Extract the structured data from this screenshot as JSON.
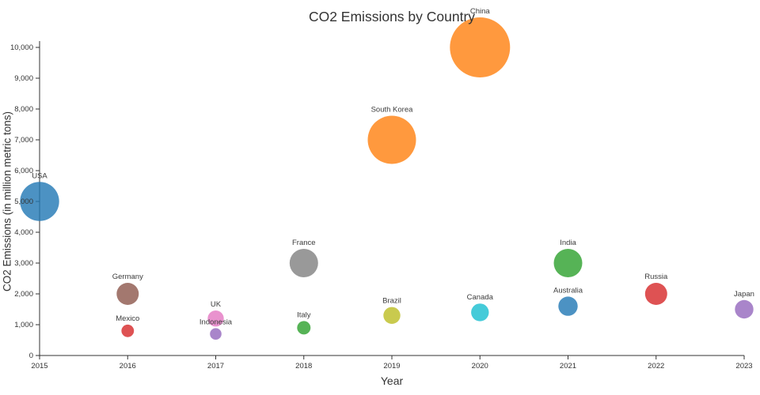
{
  "chart_data": {
    "type": "scatter",
    "title": "CO2 Emissions by Country",
    "xlabel": "Year",
    "ylabel": "CO2 Emissions (in million metric tons)",
    "xlim": [
      2015,
      2023
    ],
    "ylim": [
      0,
      10000
    ],
    "x_ticks": [
      2015,
      2016,
      2017,
      2018,
      2019,
      2020,
      2021,
      2022,
      2023
    ],
    "y_ticks": [
      0,
      1000,
      2000,
      3000,
      4000,
      5000,
      6000,
      7000,
      8000,
      9000,
      10000
    ],
    "grid": false,
    "legend": "none",
    "bubble_opacity": 0.8,
    "axis_color": "#333333",
    "label_color": "#3b3b3b",
    "points": [
      {
        "country": "USA",
        "year": 2015,
        "value": 5000,
        "color": "#1f77b4"
      },
      {
        "country": "Germany",
        "year": 2016,
        "value": 2000,
        "color": "#8c564b"
      },
      {
        "country": "Mexico",
        "year": 2016,
        "value": 800,
        "color": "#d62728"
      },
      {
        "country": "UK",
        "year": 2017,
        "value": 1200,
        "color": "#e377c2"
      },
      {
        "country": "Indonesia",
        "year": 2017,
        "value": 700,
        "color": "#9467bd"
      },
      {
        "country": "France",
        "year": 2018,
        "value": 3000,
        "color": "#7f7f7f"
      },
      {
        "country": "Italy",
        "year": 2018,
        "value": 900,
        "color": "#2ca02c"
      },
      {
        "country": "South Korea",
        "year": 2019,
        "value": 7000,
        "color": "#ff7f0e"
      },
      {
        "country": "Brazil",
        "year": 2019,
        "value": 1300,
        "color": "#bcbd22"
      },
      {
        "country": "China",
        "year": 2020,
        "value": 10000,
        "color": "#ff7f0e"
      },
      {
        "country": "Canada",
        "year": 2020,
        "value": 1400,
        "color": "#17becf"
      },
      {
        "country": "India",
        "year": 2021,
        "value": 3000,
        "color": "#2ca02c"
      },
      {
        "country": "Australia",
        "year": 2021,
        "value": 1600,
        "color": "#1f77b4"
      },
      {
        "country": "Russia",
        "year": 2022,
        "value": 2000,
        "color": "#d62728"
      },
      {
        "country": "Japan",
        "year": 2023,
        "value": 1500,
        "color": "#9467bd"
      }
    ]
  }
}
